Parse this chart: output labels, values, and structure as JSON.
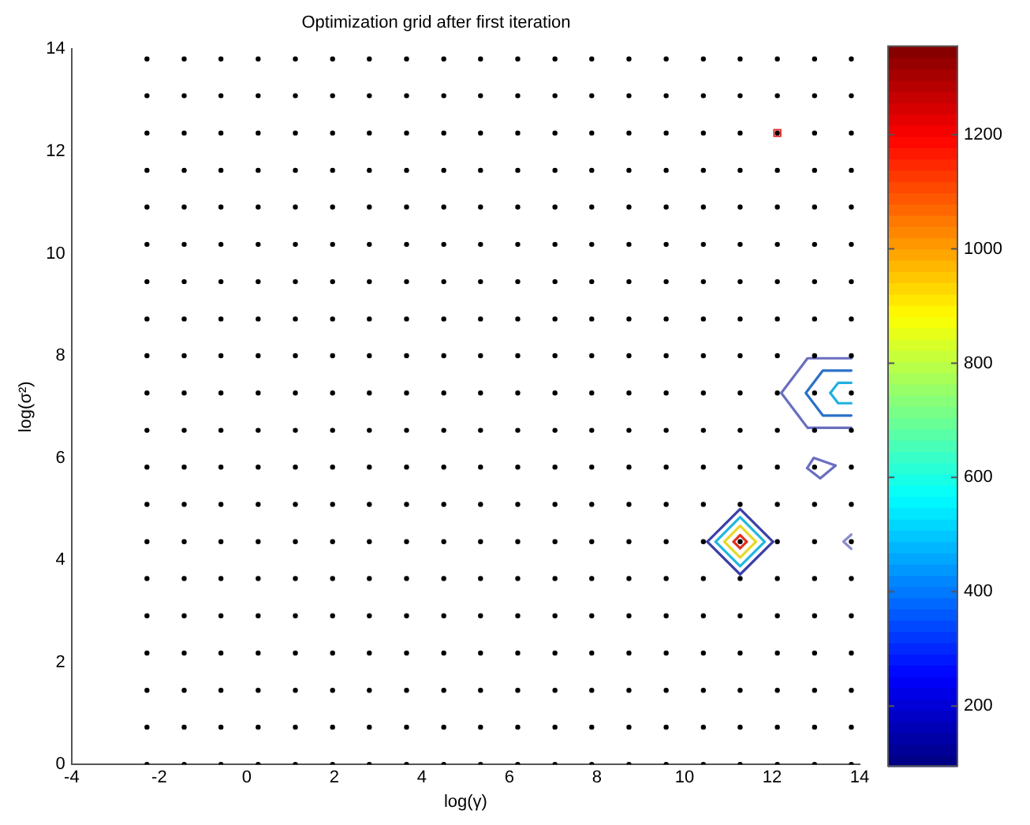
{
  "chart_data": {
    "type": "scatter",
    "title": "Optimization grid after first iteration",
    "xlabel": "log(γ)",
    "ylabel": "log(σ²)",
    "xlim": [
      -4,
      14
    ],
    "xticks": [
      -4,
      -2,
      0,
      2,
      4,
      6,
      8,
      10,
      12,
      14
    ],
    "ylim": [
      0,
      14
    ],
    "yticks": [
      0,
      2,
      4,
      6,
      8,
      10,
      12,
      14
    ],
    "grid": false,
    "legend": false,
    "marker": "circle",
    "clim": [
      95,
      1355
    ],
    "cticks": [
      200,
      400,
      600,
      800,
      1000,
      1200
    ],
    "series": [
      {
        "color": "#000000",
        "x": [
          -2.28,
          -1.43,
          -0.59,
          0.26,
          1.11,
          1.96,
          2.8,
          3.65,
          4.5,
          5.34,
          6.19,
          7.04,
          7.88,
          8.73,
          9.58,
          10.43,
          11.27,
          12.12,
          12.97,
          13.81,
          -2.28,
          -1.43,
          -0.59,
          0.26,
          1.11,
          1.96,
          2.8,
          3.65,
          4.5,
          5.34,
          6.19,
          7.04,
          7.88,
          8.73,
          9.58,
          10.43,
          11.27,
          12.12,
          12.97,
          13.81,
          -2.28,
          -1.43,
          -0.59,
          0.26,
          1.11,
          1.96,
          2.8,
          3.65,
          4.5,
          5.34,
          6.19,
          7.04,
          7.88,
          8.73,
          9.58,
          10.43,
          11.27,
          12.12,
          12.97,
          13.81,
          -2.28,
          -1.43,
          -0.59,
          0.26,
          1.11,
          1.96,
          2.8,
          3.65,
          4.5,
          5.34,
          6.19,
          7.04,
          7.88,
          8.73,
          9.58,
          10.43,
          11.27,
          12.12,
          12.97,
          13.81,
          -2.28,
          -1.43,
          -0.59,
          0.26,
          1.11,
          1.96,
          2.8,
          3.65,
          4.5,
          5.34,
          6.19,
          7.04,
          7.88,
          8.73,
          9.58,
          10.43,
          11.27,
          12.12,
          12.97,
          13.81,
          -2.28,
          -1.43,
          -0.59,
          0.26,
          1.11,
          1.96,
          2.8,
          3.65,
          4.5,
          5.34,
          6.19,
          7.04,
          7.88,
          8.73,
          9.58,
          10.43,
          11.27,
          12.12,
          12.97,
          13.81,
          -2.28,
          -1.43,
          -0.59,
          0.26,
          1.11,
          1.96,
          2.8,
          3.65,
          4.5,
          5.34,
          6.19,
          7.04,
          7.88,
          8.73,
          9.58,
          10.43,
          11.27,
          12.12,
          12.97,
          13.81,
          -2.28,
          -1.43,
          -0.59,
          0.26,
          1.11,
          1.96,
          2.8,
          3.65,
          4.5,
          5.34,
          6.19,
          7.04,
          7.88,
          8.73,
          9.58,
          10.43,
          11.27,
          12.12,
          12.97,
          13.81,
          -2.28,
          -1.43,
          -0.59,
          0.26,
          1.11,
          1.96,
          2.8,
          3.65,
          4.5,
          5.34,
          6.19,
          7.04,
          7.88,
          8.73,
          9.58,
          10.43,
          11.27,
          12.12,
          12.97,
          13.81,
          -2.28,
          -1.43,
          -0.59,
          0.26,
          1.11,
          1.96,
          2.8,
          3.65,
          4.5,
          5.34,
          6.19,
          7.04,
          7.88,
          8.73,
          9.58,
          10.43,
          11.27,
          12.12,
          12.97,
          13.81,
          -2.28,
          -1.43,
          -0.59,
          0.26,
          1.11,
          1.96,
          2.8,
          3.65,
          4.5,
          5.34,
          6.19,
          7.04,
          7.88,
          8.73,
          9.58,
          10.43,
          11.27,
          12.12,
          12.97,
          13.81,
          -2.28,
          -1.43,
          -0.59,
          0.26,
          1.11,
          1.96,
          2.8,
          3.65,
          4.5,
          5.34,
          6.19,
          7.04,
          7.88,
          8.73,
          9.58,
          10.43,
          11.27,
          12.12,
          12.97,
          13.81,
          -2.28,
          -1.43,
          -0.59,
          0.26,
          1.11,
          1.96,
          2.8,
          3.65,
          4.5,
          5.34,
          6.19,
          7.04,
          7.88,
          8.73,
          9.58,
          10.43,
          11.27,
          12.12,
          12.97,
          13.81,
          -2.28,
          -1.43,
          -0.59,
          0.26,
          1.11,
          1.96,
          2.8,
          3.65,
          4.5,
          5.34,
          6.19,
          7.04,
          7.88,
          8.73,
          9.58,
          10.43,
          11.27,
          12.12,
          12.97,
          13.81,
          -2.28,
          -1.43,
          -0.59,
          0.26,
          1.11,
          1.96,
          2.8,
          3.65,
          4.5,
          5.34,
          6.19,
          7.04,
          7.88,
          8.73,
          9.58,
          10.43,
          11.27,
          12.12,
          12.97,
          13.81,
          -2.28,
          -1.43,
          -0.59,
          0.26,
          1.11,
          1.96,
          2.8,
          3.65,
          4.5,
          5.34,
          6.19,
          7.04,
          7.88,
          8.73,
          9.58,
          10.43,
          11.27,
          12.12,
          12.97,
          13.81,
          -2.28,
          -1.43,
          -0.59,
          0.26,
          1.11,
          1.96,
          2.8,
          3.65,
          4.5,
          5.34,
          6.19,
          7.04,
          7.88,
          8.73,
          9.58,
          10.43,
          11.27,
          12.12,
          12.97,
          13.81,
          -2.28,
          -1.43,
          -0.59,
          0.26,
          1.11,
          1.96,
          2.8,
          3.65,
          4.5,
          5.34,
          6.19,
          7.04,
          7.88,
          8.73,
          9.58,
          10.43,
          11.27,
          12.12,
          12.97,
          13.81,
          -2.28,
          -1.43,
          -0.59,
          0.26,
          1.11,
          1.96,
          2.8,
          3.65,
          4.5,
          5.34,
          6.19,
          7.04,
          7.88,
          8.73,
          9.58,
          10.43,
          11.27,
          12.12,
          12.97,
          13.81,
          -2.28,
          -1.43,
          -0.59,
          0.26,
          1.11,
          1.96,
          2.8,
          3.65,
          4.5,
          5.34,
          6.19,
          7.04,
          7.88,
          8.73,
          9.58,
          10.43,
          11.27,
          12.12,
          12.97,
          13.81
        ],
        "values": [
          0,
          0,
          0,
          0,
          0,
          0,
          0,
          0,
          0,
          0,
          0,
          0,
          0,
          0,
          0,
          0,
          0,
          0,
          0,
          0,
          0.73,
          0.73,
          0.73,
          0.73,
          0.73,
          0.73,
          0.73,
          0.73,
          0.73,
          0.73,
          0.73,
          0.73,
          0.73,
          0.73,
          0.73,
          0.73,
          0.73,
          0.73,
          0.73,
          0.73,
          1.45,
          1.45,
          1.45,
          1.45,
          1.45,
          1.45,
          1.45,
          1.45,
          1.45,
          1.45,
          1.45,
          1.45,
          1.45,
          1.45,
          1.45,
          1.45,
          1.45,
          1.45,
          1.45,
          1.45,
          2.18,
          2.18,
          2.18,
          2.18,
          2.18,
          2.18,
          2.18,
          2.18,
          2.18,
          2.18,
          2.18,
          2.18,
          2.18,
          2.18,
          2.18,
          2.18,
          2.18,
          2.18,
          2.18,
          2.18,
          2.91,
          2.91,
          2.91,
          2.91,
          2.91,
          2.91,
          2.91,
          2.91,
          2.91,
          2.91,
          2.91,
          2.91,
          2.91,
          2.91,
          2.91,
          2.91,
          2.91,
          2.91,
          2.91,
          2.91,
          3.64,
          3.64,
          3.64,
          3.64,
          3.64,
          3.64,
          3.64,
          3.64,
          3.64,
          3.64,
          3.64,
          3.64,
          3.64,
          3.64,
          3.64,
          3.64,
          3.64,
          3.64,
          3.64,
          3.64,
          4.36,
          4.36,
          4.36,
          4.36,
          4.36,
          4.36,
          4.36,
          4.36,
          4.36,
          4.36,
          4.36,
          4.36,
          4.36,
          4.36,
          4.36,
          4.36,
          4.36,
          4.36,
          4.36,
          4.36,
          5.09,
          5.09,
          5.09,
          5.09,
          5.09,
          5.09,
          5.09,
          5.09,
          5.09,
          5.09,
          5.09,
          5.09,
          5.09,
          5.09,
          5.09,
          5.09,
          5.09,
          5.09,
          5.09,
          5.09,
          5.82,
          5.82,
          5.82,
          5.82,
          5.82,
          5.82,
          5.82,
          5.82,
          5.82,
          5.82,
          5.82,
          5.82,
          5.82,
          5.82,
          5.82,
          5.82,
          5.82,
          5.82,
          5.82,
          5.82,
          6.54,
          6.54,
          6.54,
          6.54,
          6.54,
          6.54,
          6.54,
          6.54,
          6.54,
          6.54,
          6.54,
          6.54,
          6.54,
          6.54,
          6.54,
          6.54,
          6.54,
          6.54,
          6.54,
          6.54,
          7.27,
          7.27,
          7.27,
          7.27,
          7.27,
          7.27,
          7.27,
          7.27,
          7.27,
          7.27,
          7.27,
          7.27,
          7.27,
          7.27,
          7.27,
          7.27,
          7.27,
          7.27,
          7.27,
          7.27,
          8,
          8,
          8,
          8,
          8,
          8,
          8,
          8,
          8,
          8,
          8,
          8,
          8,
          8,
          8,
          8,
          8,
          8,
          8,
          8,
          8.72,
          8.72,
          8.72,
          8.72,
          8.72,
          8.72,
          8.72,
          8.72,
          8.72,
          8.72,
          8.72,
          8.72,
          8.72,
          8.72,
          8.72,
          8.72,
          8.72,
          8.72,
          8.72,
          8.72,
          9.45,
          9.45,
          9.45,
          9.45,
          9.45,
          9.45,
          9.45,
          9.45,
          9.45,
          9.45,
          9.45,
          9.45,
          9.45,
          9.45,
          9.45,
          9.45,
          9.45,
          9.45,
          9.45,
          9.45,
          10.18,
          10.18,
          10.18,
          10.18,
          10.18,
          10.18,
          10.18,
          10.18,
          10.18,
          10.18,
          10.18,
          10.18,
          10.18,
          10.18,
          10.18,
          10.18,
          10.18,
          10.18,
          10.18,
          10.18,
          10.91,
          10.91,
          10.91,
          10.91,
          10.91,
          10.91,
          10.91,
          10.91,
          10.91,
          10.91,
          10.91,
          10.91,
          10.91,
          10.91,
          10.91,
          10.91,
          10.91,
          10.91,
          10.91,
          10.91,
          11.63,
          11.63,
          11.63,
          11.63,
          11.63,
          11.63,
          11.63,
          11.63,
          11.63,
          11.63,
          11.63,
          11.63,
          11.63,
          11.63,
          11.63,
          11.63,
          11.63,
          11.63,
          11.63,
          11.63,
          12.36,
          12.36,
          12.36,
          12.36,
          12.36,
          12.36,
          12.36,
          12.36,
          12.36,
          12.36,
          12.36,
          12.36,
          12.36,
          12.36,
          12.36,
          12.36,
          12.36,
          12.36,
          12.36,
          12.36,
          13.09,
          13.09,
          13.09,
          13.09,
          13.09,
          13.09,
          13.09,
          13.09,
          13.09,
          13.09,
          13.09,
          13.09,
          13.09,
          13.09,
          13.09,
          13.09,
          13.09,
          13.09,
          13.09,
          13.09,
          13.81,
          13.81,
          13.81,
          13.81,
          13.81,
          13.81,
          13.81,
          13.81,
          13.81,
          13.81,
          13.81,
          13.81,
          13.81,
          13.81,
          13.81,
          13.81,
          13.81,
          13.81,
          13.81,
          13.81
        ]
      },
      {
        "type": "line",
        "marker": "none",
        "color": "#3b3fa6",
        "x": [
          10.52,
          11.27,
          12.02
        ],
        "values": [
          4.36,
          5.0,
          4.36
        ]
      },
      {
        "type": "line",
        "marker": "none",
        "color": "#3b3fa6",
        "x": [
          10.52,
          11.27,
          12.02
        ],
        "values": [
          4.36,
          3.72,
          4.36
        ]
      },
      {
        "type": "line",
        "marker": "none",
        "color": "#20b8e0",
        "x": [
          10.71,
          11.27,
          11.83
        ],
        "values": [
          4.36,
          4.84,
          4.36
        ]
      },
      {
        "type": "line",
        "marker": "none",
        "color": "#20b8e0",
        "x": [
          10.71,
          11.27,
          11.83
        ],
        "values": [
          4.36,
          3.88,
          4.36
        ]
      },
      {
        "type": "line",
        "marker": "none",
        "color": "#e8d828",
        "x": [
          10.91,
          11.27,
          11.63
        ],
        "values": [
          4.36,
          4.67,
          4.36
        ]
      },
      {
        "type": "line",
        "marker": "none",
        "color": "#e8d828",
        "x": [
          10.91,
          11.27,
          11.63
        ],
        "values": [
          4.36,
          4.05,
          4.36
        ]
      },
      {
        "type": "line",
        "marker": "none",
        "color": "#e03020",
        "x": [
          11.12,
          11.27,
          11.42
        ],
        "values": [
          4.36,
          4.49,
          4.36
        ]
      },
      {
        "type": "line",
        "marker": "none",
        "color": "#e03020",
        "x": [
          11.12,
          11.27,
          11.42
        ],
        "values": [
          4.36,
          4.23,
          4.36
        ]
      },
      {
        "type": "line",
        "marker": "none",
        "color": "#6a6ec0",
        "x": [
          13.81,
          12.81,
          12.21,
          12.81,
          13.81
        ],
        "values": [
          7.95,
          7.95,
          7.27,
          6.59,
          6.59
        ]
      },
      {
        "type": "line",
        "marker": "none",
        "color": "#2a70c8",
        "x": [
          13.81,
          13.16,
          12.77,
          13.16,
          13.81
        ],
        "values": [
          7.71,
          7.71,
          7.27,
          6.83,
          6.83
        ]
      },
      {
        "type": "line",
        "marker": "none",
        "color": "#20b0e0",
        "x": [
          13.33,
          13.51,
          13.81
        ],
        "values": [
          7.27,
          7.47,
          7.47
        ]
      },
      {
        "type": "line",
        "marker": "none",
        "color": "#20b0e0",
        "x": [
          13.33,
          13.51,
          13.81
        ],
        "values": [
          7.27,
          7.07,
          7.07
        ]
      },
      {
        "type": "line",
        "marker": "none",
        "color": "#6a6ec0",
        "x": [
          12.8,
          12.95,
          13.45
        ],
        "values": [
          5.8,
          6.0,
          5.85
        ]
      },
      {
        "type": "line",
        "marker": "none",
        "color": "#6a6ec0",
        "x": [
          12.8,
          13.1,
          13.45
        ],
        "values": [
          5.8,
          5.6,
          5.85
        ]
      },
      {
        "type": "line",
        "marker": "none",
        "color": "#8a8ed0",
        "x": [
          13.81,
          13.63,
          13.81
        ],
        "values": [
          4.5,
          4.36,
          4.22
        ]
      },
      {
        "marker": "square",
        "color": "#e03030",
        "x": [
          12.12
        ],
        "values": [
          12.36
        ]
      }
    ]
  }
}
